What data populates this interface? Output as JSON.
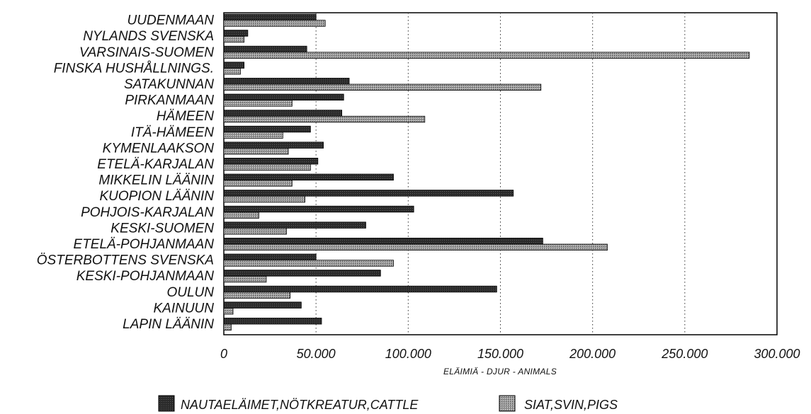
{
  "chart_data": {
    "type": "bar",
    "orientation": "horizontal",
    "categories": [
      "UUDENMAAN",
      "NYLANDS SVENSKA",
      "VARSINAIS-SUOMEN",
      "FINSKA HUSHÅLLNINGS.",
      "SATAKUNNAN",
      "PIRKANMAAN",
      "HÄMEEN",
      "ITÄ-HÄMEEN",
      "KYMENLAAKSON",
      "ETELÄ-KARJALAN",
      "MIKKELIN LÄÄNIN",
      "KUOPION LÄÄNIN",
      "POHJOIS-KARJALAN",
      "KESKI-SUOMEN",
      "ETELÄ-POHJANMAAN",
      "ÖSTERBOTTENS SVENSKA",
      "KESKI-POHJANMAAN",
      "OULUN",
      "KAINUUN",
      "LAPIN LÄÄNIN"
    ],
    "series": [
      {
        "name": "NAUTAELÄIMET,NÖTKREATUR,CATTLE",
        "color": "#2a2a2a",
        "values": [
          50000,
          13000,
          45000,
          11000,
          68000,
          65000,
          64000,
          47000,
          54000,
          51000,
          92000,
          157000,
          103000,
          77000,
          173000,
          50000,
          85000,
          148000,
          42000,
          53000
        ]
      },
      {
        "name": "SIAT,SVIN,PIGS",
        "color": "#9a9a9a",
        "values": [
          55000,
          11000,
          285000,
          9000,
          172000,
          37000,
          109000,
          32000,
          35000,
          47000,
          37000,
          44000,
          19000,
          34000,
          208000,
          92000,
          23000,
          36000,
          5000,
          4000
        ]
      }
    ],
    "xlabel": "ELÄIMIÄ - DJUR - ANIMALS",
    "ylabel": "",
    "xlim": [
      0,
      300000
    ],
    "xticks": [
      0,
      50000,
      100000,
      150000,
      200000,
      250000,
      300000
    ],
    "xtick_labels": [
      "0",
      "50.000",
      "100.000",
      "150.000",
      "200.000",
      "250.000",
      "300.000"
    ],
    "grid": "vertical dotted",
    "legend": "bottom"
  }
}
